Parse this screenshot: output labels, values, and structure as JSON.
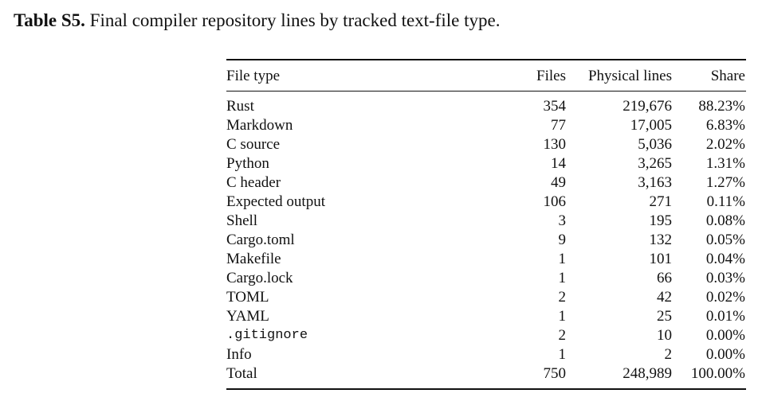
{
  "caption": {
    "label": "Table S5.",
    "text": "Final compiler repository lines by tracked text-file type."
  },
  "table": {
    "header": [
      "File type",
      "Files",
      "Physical lines",
      "Share"
    ],
    "rows": [
      [
        "Rust",
        "354",
        "219,676",
        "88.23%"
      ],
      [
        "Markdown",
        "77",
        "17,005",
        "6.83%"
      ],
      [
        "C source",
        "130",
        "5,036",
        "2.02%"
      ],
      [
        "Python",
        "14",
        "3,265",
        "1.31%"
      ],
      [
        "C header",
        "49",
        "3,163",
        "1.27%"
      ],
      [
        "Expected output",
        "106",
        "271",
        "0.11%"
      ],
      [
        "Shell",
        "3",
        "195",
        "0.08%"
      ],
      [
        "Cargo.toml",
        "9",
        "132",
        "0.05%"
      ],
      [
        "Makefile",
        "1",
        "101",
        "0.04%"
      ],
      [
        "Cargo.lock",
        "1",
        "66",
        "0.03%"
      ],
      [
        "TOML",
        "2",
        "42",
        "0.02%"
      ],
      [
        "YAML",
        "1",
        "25",
        "0.01%"
      ],
      [
        ".gitignore",
        "2",
        "10",
        "0.00%"
      ],
      [
        "Info",
        "1",
        "2",
        "0.00%"
      ],
      [
        "Total",
        "750",
        "248,989",
        "100.00%"
      ]
    ]
  }
}
